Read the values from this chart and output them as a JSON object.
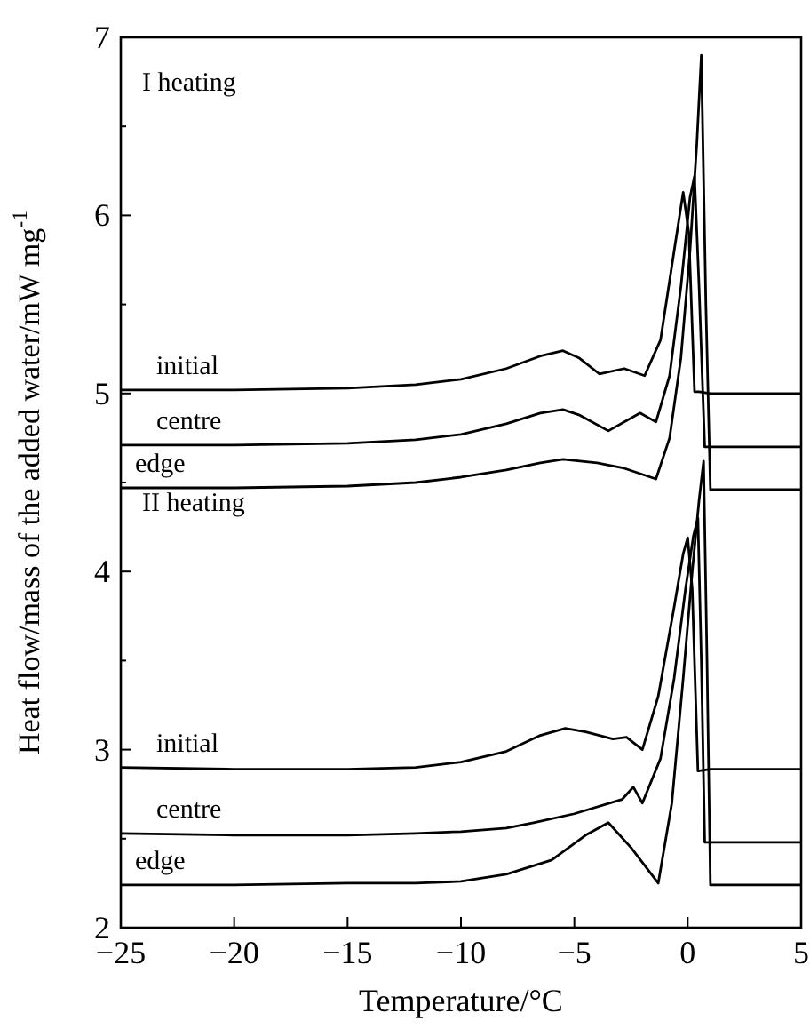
{
  "chart_data": {
    "type": "line",
    "xlabel": "Temperature/°C",
    "ylabel": "Heat flow/mass of the added water/mW mg$^{-1}$",
    "xlim": [
      -25,
      5
    ],
    "ylim": [
      2,
      7
    ],
    "xticks": [
      -25,
      -20,
      -15,
      -10,
      -5,
      0,
      5
    ],
    "yticks": [
      2,
      {
        "value": 2.5,
        "label": null
      },
      3,
      {
        "value": 3.5,
        "label": null
      },
      4,
      {
        "value": 4.5,
        "label": null
      },
      5,
      {
        "value": 5.5,
        "label": null
      },
      6,
      {
        "value": 6.5,
        "label": null
      },
      7
    ],
    "marker": "none",
    "line_style": "solid",
    "annotations": [
      "I heating",
      "II heating"
    ],
    "series": [
      {
        "name": "initial",
        "color": "#000000",
        "x": [
          -25,
          -20,
          -15,
          -12,
          -10,
          -8,
          -6.5,
          -5.5,
          -4.8,
          -3.9,
          -2.8,
          -1.9,
          -1.2,
          -0.6,
          -0.2,
          0.05,
          0.3,
          0.5,
          1,
          3,
          5
        ],
        "values": [
          5.02,
          5.02,
          5.03,
          5.05,
          5.08,
          5.14,
          5.21,
          5.24,
          5.2,
          5.11,
          5.14,
          5.1,
          5.3,
          5.8,
          6.13,
          5.9,
          5.01,
          5.01,
          5.0,
          5.0,
          5.0
        ]
      },
      {
        "name": "centre",
        "color": "#000000",
        "x": [
          -25,
          -20,
          -15,
          -12,
          -10,
          -8,
          -6.5,
          -5.5,
          -4.8,
          -3.5,
          -2.1,
          -1.4,
          -0.8,
          -0.3,
          0.1,
          0.3,
          0.5,
          0.75,
          1,
          3,
          5
        ],
        "values": [
          4.71,
          4.71,
          4.72,
          4.74,
          4.77,
          4.83,
          4.89,
          4.91,
          4.88,
          4.79,
          4.89,
          4.84,
          5.1,
          5.6,
          6.1,
          6.22,
          5.6,
          4.7,
          4.7,
          4.7,
          4.7
        ]
      },
      {
        "name": "edge",
        "color": "#000000",
        "x": [
          -25,
          -20,
          -15,
          -12,
          -10,
          -8,
          -6.5,
          -5.5,
          -4,
          -2.8,
          -1.4,
          -0.8,
          -0.3,
          0.1,
          0.4,
          0.6,
          0.8,
          1,
          3,
          5
        ],
        "values": [
          4.47,
          4.47,
          4.48,
          4.5,
          4.53,
          4.57,
          4.61,
          4.63,
          4.61,
          4.58,
          4.52,
          4.75,
          5.2,
          5.8,
          6.4,
          6.9,
          5.5,
          4.46,
          4.46,
          4.46
        ]
      },
      {
        "name": "initial",
        "color": "#000000",
        "x": [
          -25,
          -20,
          -15,
          -12,
          -10,
          -8,
          -6.5,
          -5.4,
          -4.5,
          -3.3,
          -2.7,
          -2.0,
          -1.3,
          -0.6,
          -0.2,
          0.0,
          0.2,
          0.45,
          1,
          3,
          5
        ],
        "values": [
          2.9,
          2.89,
          2.89,
          2.9,
          2.93,
          2.99,
          3.08,
          3.12,
          3.1,
          3.06,
          3.07,
          3.0,
          3.3,
          3.8,
          4.1,
          4.19,
          3.9,
          2.88,
          2.89,
          2.89,
          2.89
        ]
      },
      {
        "name": "centre",
        "color": "#000000",
        "x": [
          -25,
          -20,
          -15,
          -12,
          -10,
          -8,
          -6.8,
          -5,
          -2.9,
          -2.4,
          -2.0,
          -1.2,
          -0.6,
          -0.1,
          0.25,
          0.45,
          0.6,
          0.75,
          1,
          3,
          5
        ],
        "values": [
          2.53,
          2.52,
          2.52,
          2.53,
          2.54,
          2.56,
          2.59,
          2.64,
          2.72,
          2.79,
          2.7,
          2.95,
          3.4,
          3.9,
          4.2,
          4.3,
          3.5,
          2.48,
          2.48,
          2.48,
          2.48
        ]
      },
      {
        "name": "edge",
        "color": "#000000",
        "x": [
          -25,
          -20,
          -15,
          -12,
          -10,
          -8,
          -6,
          -4.5,
          -3.5,
          -2.5,
          -1.3,
          -0.7,
          -0.2,
          0.2,
          0.5,
          0.7,
          0.85,
          1,
          3,
          5
        ],
        "values": [
          2.24,
          2.24,
          2.25,
          2.25,
          2.26,
          2.3,
          2.38,
          2.52,
          2.59,
          2.45,
          2.25,
          2.7,
          3.4,
          4.0,
          4.4,
          4.62,
          3.5,
          2.24,
          2.24,
          2.24
        ]
      }
    ]
  }
}
